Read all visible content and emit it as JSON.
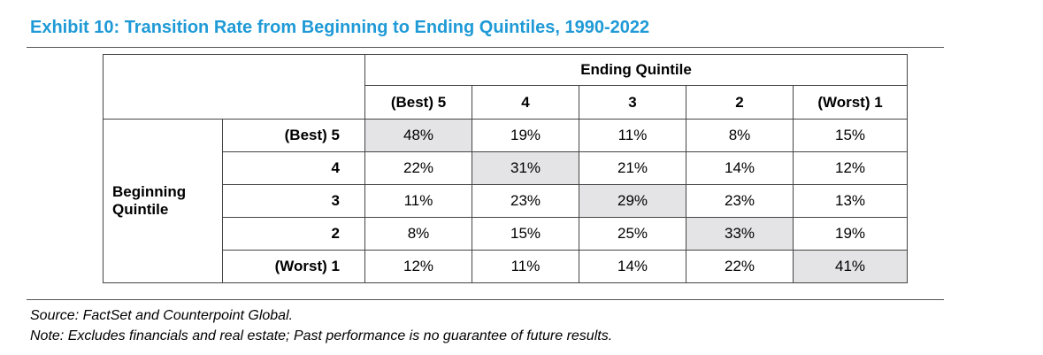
{
  "title": "Exhibit 10: Transition Rate from Beginning to Ending Quintiles, 1990-2022",
  "table": {
    "column_group_label": "Ending Quintile",
    "row_group_label_line1": "Beginning",
    "row_group_label_line2": "Quintile",
    "columns": [
      "(Best) 5",
      "4",
      "3",
      "2",
      "(Worst) 1"
    ],
    "rows": [
      {
        "label": "(Best) 5",
        "values": [
          "48%",
          "19%",
          "11%",
          "8%",
          "15%"
        ]
      },
      {
        "label": "4",
        "values": [
          "22%",
          "31%",
          "21%",
          "14%",
          "12%"
        ]
      },
      {
        "label": "3",
        "values": [
          "11%",
          "23%",
          "29%",
          "23%",
          "13%"
        ]
      },
      {
        "label": "2",
        "values": [
          "8%",
          "15%",
          "25%",
          "33%",
          "19%"
        ]
      },
      {
        "label": "(Worst) 1",
        "values": [
          "12%",
          "11%",
          "14%",
          "22%",
          "41%"
        ]
      }
    ],
    "highlight_color": "#e4e4e6"
  },
  "footnotes": {
    "source": "Source: FactSet and Counterpoint Global.",
    "note": "Note: Excludes financials and real estate; Past performance is no guarantee of future results."
  },
  "colors": {
    "title": "#1f9ad6"
  }
}
